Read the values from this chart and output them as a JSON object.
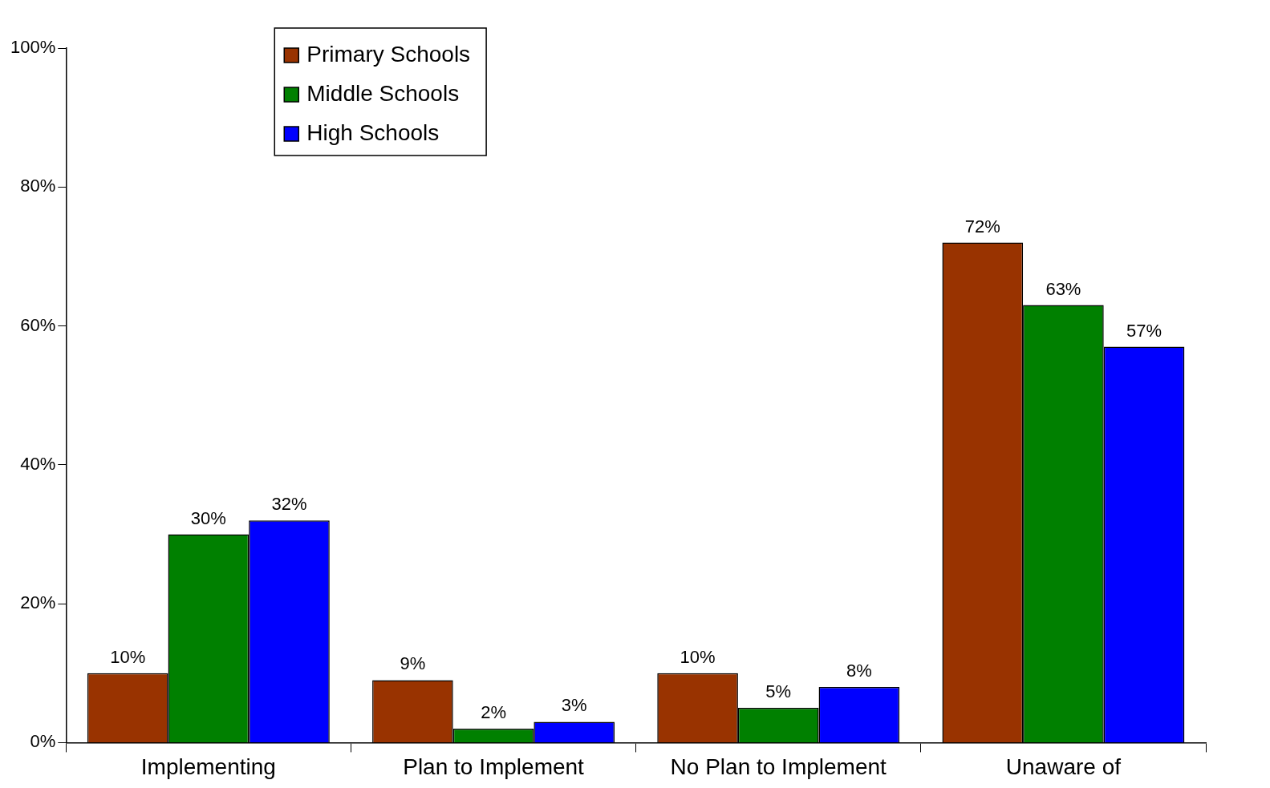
{
  "chart_data": {
    "type": "bar",
    "categories": [
      "Implementing",
      "Plan to Implement",
      "No Plan to Implement",
      "Unaware of"
    ],
    "series": [
      {
        "name": "Primary Schools",
        "color": "#993300",
        "values": [
          10,
          9,
          10,
          72
        ],
        "value_labels": [
          "10%",
          "9%",
          "10%",
          "72%"
        ]
      },
      {
        "name": "Middle Schools",
        "color": "#008000",
        "values": [
          30,
          2,
          5,
          63
        ],
        "value_labels": [
          "30%",
          "2%",
          "5%",
          "63%"
        ]
      },
      {
        "name": "High Schools",
        "color": "#0000ff",
        "values": [
          32,
          3,
          8,
          57
        ],
        "value_labels": [
          "32%",
          "3%",
          "8%",
          "57%"
        ]
      }
    ],
    "ylim": [
      0,
      100
    ],
    "yticks": [
      {
        "value": 0,
        "label": "0%"
      },
      {
        "value": 20,
        "label": "20%"
      },
      {
        "value": 40,
        "label": "40%"
      },
      {
        "value": 60,
        "label": "60%"
      },
      {
        "value": 80,
        "label": "80%"
      },
      {
        "value": 100,
        "label": "100%"
      }
    ],
    "grid": false,
    "legend": "top left"
  }
}
